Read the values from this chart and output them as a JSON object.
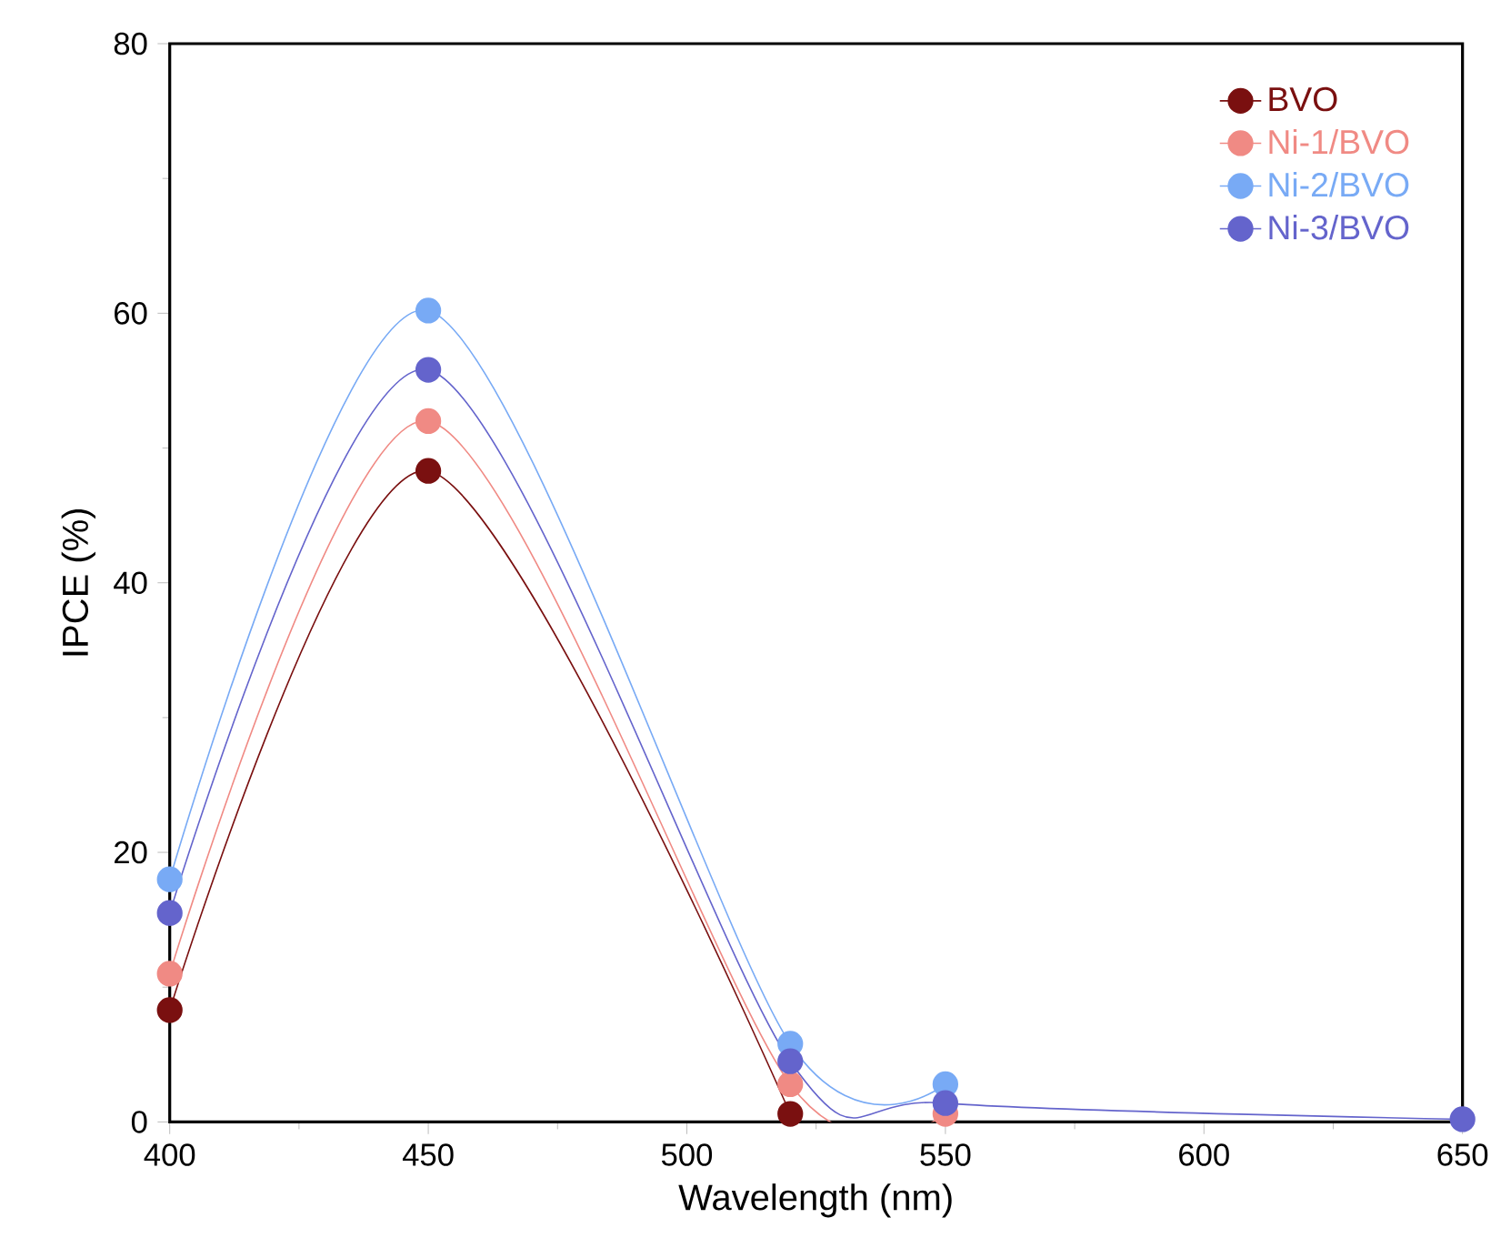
{
  "chart_data": {
    "type": "line",
    "xlabel": "Wavelength (nm)",
    "ylabel": "IPCE (%)",
    "x": [
      400,
      450,
      520,
      550,
      650
    ],
    "series": [
      {
        "name": "BVO",
        "color": "#7a1010",
        "values": [
          8.3,
          48.3,
          0.6,
          null,
          null
        ]
      },
      {
        "name": "Ni-1/BVO",
        "color": "#f08a84",
        "values": [
          11,
          52,
          2.8,
          0.6,
          null
        ]
      },
      {
        "name": "Ni-2/BVO",
        "color": "#78aaf5",
        "values": [
          18,
          60.2,
          5.8,
          2.8,
          null
        ]
      },
      {
        "name": "Ni-3/BVO",
        "color": "#6464cc",
        "values": [
          15.5,
          55.8,
          4.5,
          1.4,
          0.2
        ]
      }
    ],
    "xlim": [
      400,
      650
    ],
    "ylim": [
      0,
      80
    ],
    "xticks": [
      400,
      450,
      500,
      550,
      600,
      650
    ],
    "yticks": [
      0,
      20,
      40,
      60,
      80
    ],
    "legend": "top right",
    "marker": "circle",
    "line_style": "solid",
    "grid": false
  }
}
